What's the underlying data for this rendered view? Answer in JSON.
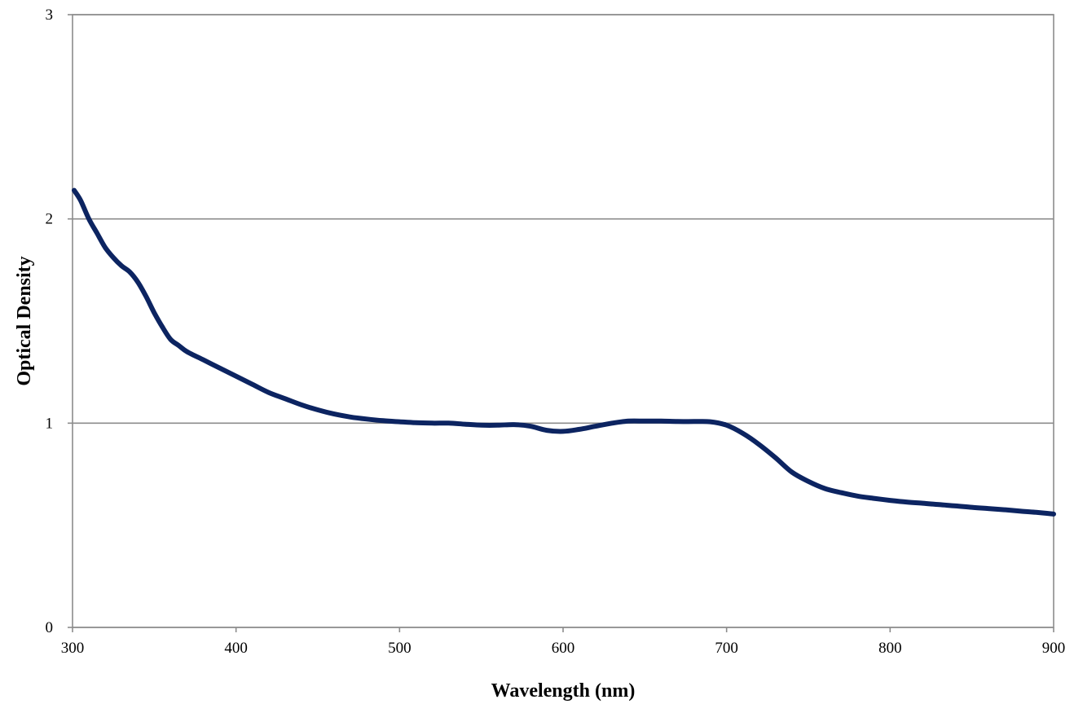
{
  "chart_data": {
    "type": "line",
    "title": "",
    "xlabel": "Wavelength (nm)",
    "ylabel": "Optical Density",
    "xlim": [
      300,
      900
    ],
    "ylim": [
      0,
      3
    ],
    "x_ticks": [
      300,
      400,
      500,
      600,
      700,
      800,
      900
    ],
    "y_ticks": [
      0,
      1,
      2,
      3
    ],
    "grid": "horizontal major gridlines",
    "legend": "none",
    "series": [
      {
        "color": "#0c2461",
        "x": [
          301,
          305,
          310,
          315,
          320,
          325,
          330,
          335,
          340,
          345,
          350,
          355,
          360,
          365,
          370,
          380,
          390,
          400,
          410,
          420,
          430,
          440,
          450,
          460,
          470,
          480,
          490,
          500,
          510,
          520,
          530,
          540,
          550,
          560,
          570,
          580,
          590,
          600,
          610,
          620,
          630,
          640,
          650,
          660,
          670,
          680,
          690,
          700,
          710,
          720,
          730,
          740,
          750,
          760,
          770,
          780,
          790,
          800,
          810,
          820,
          830,
          840,
          850,
          860,
          870,
          880,
          890,
          900
        ],
        "y": [
          2.14,
          2.09,
          2.0,
          1.93,
          1.86,
          1.81,
          1.77,
          1.74,
          1.69,
          1.62,
          1.54,
          1.47,
          1.41,
          1.38,
          1.35,
          1.31,
          1.27,
          1.23,
          1.19,
          1.15,
          1.12,
          1.09,
          1.065,
          1.045,
          1.03,
          1.02,
          1.012,
          1.007,
          1.002,
          1.0,
          1.0,
          0.995,
          0.99,
          0.99,
          0.993,
          0.985,
          0.965,
          0.96,
          0.97,
          0.985,
          1.0,
          1.01,
          1.01,
          1.01,
          1.008,
          1.008,
          1.007,
          0.99,
          0.95,
          0.895,
          0.83,
          0.76,
          0.715,
          0.68,
          0.66,
          0.643,
          0.632,
          0.622,
          0.614,
          0.608,
          0.601,
          0.595,
          0.588,
          0.582,
          0.576,
          0.569,
          0.563,
          0.555
        ]
      }
    ]
  }
}
